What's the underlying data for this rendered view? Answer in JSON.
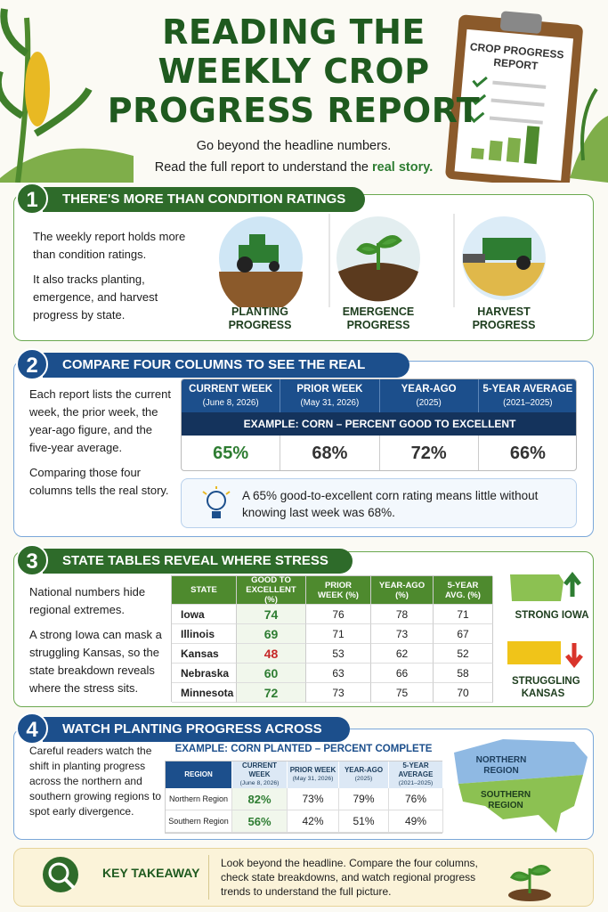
{
  "header": {
    "title_lines": [
      "READING THE",
      "WEEKLY CROP",
      "PROGRESS REPORT"
    ],
    "subtitle": "Go beyond the headline numbers.",
    "subtitle_2": "Read the full report to understand the",
    "subtitle_highlight": "real story."
  },
  "clipboard": {
    "title_lines": [
      "CROP PROGRESS",
      "REPORT"
    ]
  },
  "section_1": {
    "number": "1",
    "title": "THERE'S MORE THAN CONDITION RATINGS",
    "paragraphs": [
      "The weekly report holds more than condition ratings.",
      "It also tracks planting, emergence, and harvest progress by state."
    ],
    "icons": [
      "PLANTING PROGRESS",
      "EMERGENCE PROGRESS",
      "HARVEST PROGRESS"
    ]
  },
  "section_2": {
    "number": "2",
    "title": "COMPARE FOUR COLUMNS TO SEE THE REAL STORY",
    "paragraphs": [
      "Each report lists the current week, the prior week, the year-ago figure, and the five-year average.",
      "Comparing those four columns tells the real story."
    ],
    "table": {
      "headers": [
        {
          "label": "CURRENT WEEK",
          "sub": "(June 8, 2026)"
        },
        {
          "label": "PRIOR WEEK",
          "sub": "(May 31, 2026)"
        },
        {
          "label": "YEAR-AGO",
          "sub": "(2025)"
        },
        {
          "label": "5-YEAR AVERAGE",
          "sub": "(2021–2025)"
        }
      ],
      "example": "EXAMPLE: CORN – PERCENT GOOD TO EXCELLENT",
      "values": [
        "65%",
        "68%",
        "72%",
        "66%"
      ]
    },
    "note": "A 65% good-to-excellent corn rating means little without knowing last week was 68%."
  },
  "section_3": {
    "number": "3",
    "title": "STATE TABLES REVEAL WHERE STRESS EXISTS",
    "paragraphs": [
      "National numbers hide regional extremes.",
      "A strong Iowa can mask a struggling Kansas, so the state breakdown reveals where the stress sits."
    ],
    "table": {
      "headers": [
        "STATE",
        "GOOD TO EXCELLENT (%)",
        "PRIOR WEEK (%)",
        "YEAR-AGO (%)",
        "5-YEAR AVG. (%)"
      ],
      "rows": [
        [
          "Iowa",
          74,
          76,
          78,
          71
        ],
        [
          "Illinois",
          69,
          71,
          73,
          67
        ],
        [
          "Kansas",
          48,
          53,
          62,
          52
        ],
        [
          "Nebraska",
          60,
          63,
          66,
          58
        ],
        [
          "Minnesota",
          72,
          73,
          75,
          70
        ]
      ]
    },
    "labels": [
      "STRONG IOWA",
      "STRUGGLING KANSAS"
    ]
  },
  "section_4": {
    "number": "4",
    "title": "WATCH PLANTING PROGRESS ACROSS REGIONS",
    "paragraphs": [
      "Careful readers watch the shift in planting progress across the northern and southern growing regions to spot early divergence."
    ],
    "table": {
      "example": "EXAMPLE: CORN PLANTED – PERCENT COMPLETE",
      "headers": [
        {
          "label": "REGION"
        },
        {
          "label": "CURRENT WEEK",
          "sub": "(June 8, 2026)"
        },
        {
          "label": "PRIOR WEEK",
          "sub": "(May 31, 2026)"
        },
        {
          "label": "YEAR-AGO",
          "sub": "(2025)"
        },
        {
          "label": "5-YEAR AVERAGE",
          "sub": "(2021–2025)"
        }
      ],
      "rows": [
        [
          "Northern Region",
          "82%",
          "73%",
          "79%",
          "76%"
        ],
        [
          "Southern Region",
          "56%",
          "42%",
          "51%",
          "49%"
        ]
      ]
    },
    "map_labels": [
      "NORTHERN REGION",
      "SOUTHERN REGION"
    ]
  },
  "takeaway": {
    "label": "KEY TAKEAWAY",
    "text": "Look beyond the headline. Compare the four columns, check state breakdowns, and watch regional progress trends to understand the full picture."
  }
}
